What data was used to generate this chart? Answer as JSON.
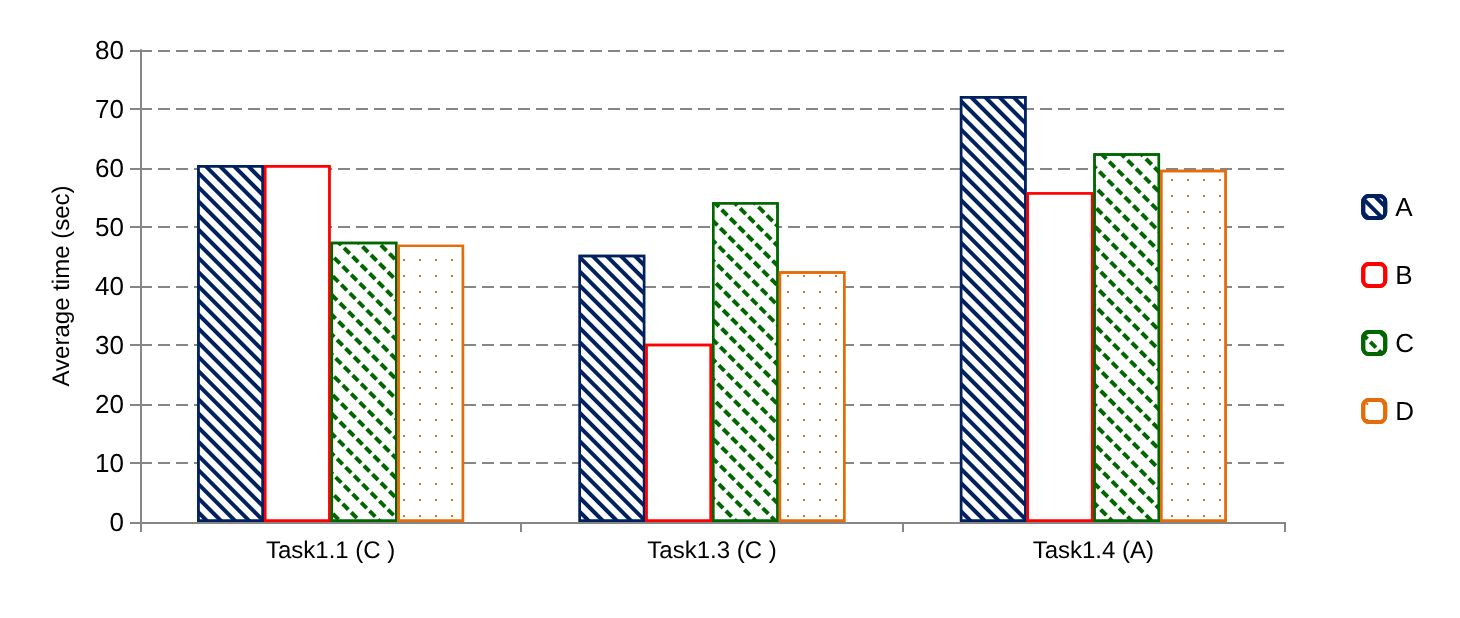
{
  "chart_data": {
    "type": "bar",
    "ylabel": "Average time (sec)",
    "categories": [
      "Task1.1 (C )",
      "Task1.3 (C )",
      "Task1.4 (A)"
    ],
    "series": [
      {
        "name": "A",
        "color": "#002060",
        "values": [
          60.5,
          45.3,
          72.2
        ]
      },
      {
        "name": "B",
        "color": "#ff0000",
        "values": [
          60.5,
          30.2,
          55.9
        ]
      },
      {
        "name": "C",
        "color": "#006600",
        "values": [
          47.5,
          54.2,
          62.5
        ]
      },
      {
        "name": "D",
        "color": "#e46c0a",
        "values": [
          47.0,
          42.5,
          59.7
        ]
      }
    ],
    "ylim": [
      0,
      80
    ],
    "yticks": [
      0,
      10,
      20,
      30,
      40,
      50,
      60,
      70,
      80
    ],
    "grid": "y",
    "legend": "right"
  }
}
